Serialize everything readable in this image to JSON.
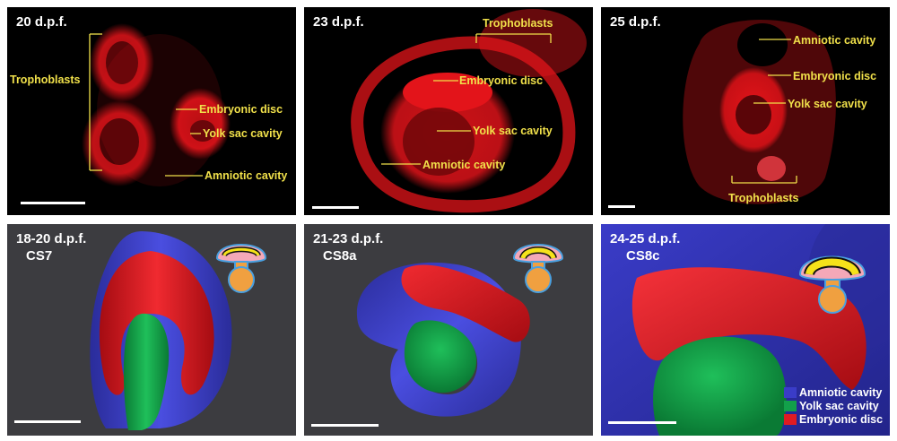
{
  "top_panels": [
    {
      "stage": "20 d.p.f.",
      "labels": {
        "trophoblasts": "Trophoblasts",
        "embryonic_disc": "Embryonic disc",
        "yolk_sac": "Yolk sac cavity",
        "amniotic": "Amniotic cavity"
      }
    },
    {
      "stage": "23 d.p.f.",
      "labels": {
        "trophoblasts": "Trophoblasts",
        "embryonic_disc": "Embryonic disc",
        "yolk_sac": "Yolk sac cavity",
        "amniotic": "Amniotic cavity"
      }
    },
    {
      "stage": "25 d.p.f.",
      "labels": {
        "amniotic": "Amniotic cavity",
        "embryonic_disc": "Embryonic disc",
        "yolk_sac": "Yolk sac cavity",
        "trophoblasts": "Trophoblasts"
      }
    }
  ],
  "bottom_panels": [
    {
      "stage": "18-20 d.p.f.",
      "carnegie": "CS7"
    },
    {
      "stage": "21-23 d.p.f.",
      "carnegie": "CS8a"
    },
    {
      "stage": "24-25 d.p.f.",
      "carnegie": "CS8c"
    }
  ],
  "legend": [
    {
      "label": "Amniotic cavity",
      "color": "#3a3cc8"
    },
    {
      "label": "Yolk sac cavity",
      "color": "#12a04a"
    },
    {
      "label": "Embryonic disc",
      "color": "#e01b22"
    }
  ],
  "colors": {
    "annotation": "#f0e04a",
    "stain": "#e3141a",
    "panel_bottom": "#3c3c40"
  }
}
